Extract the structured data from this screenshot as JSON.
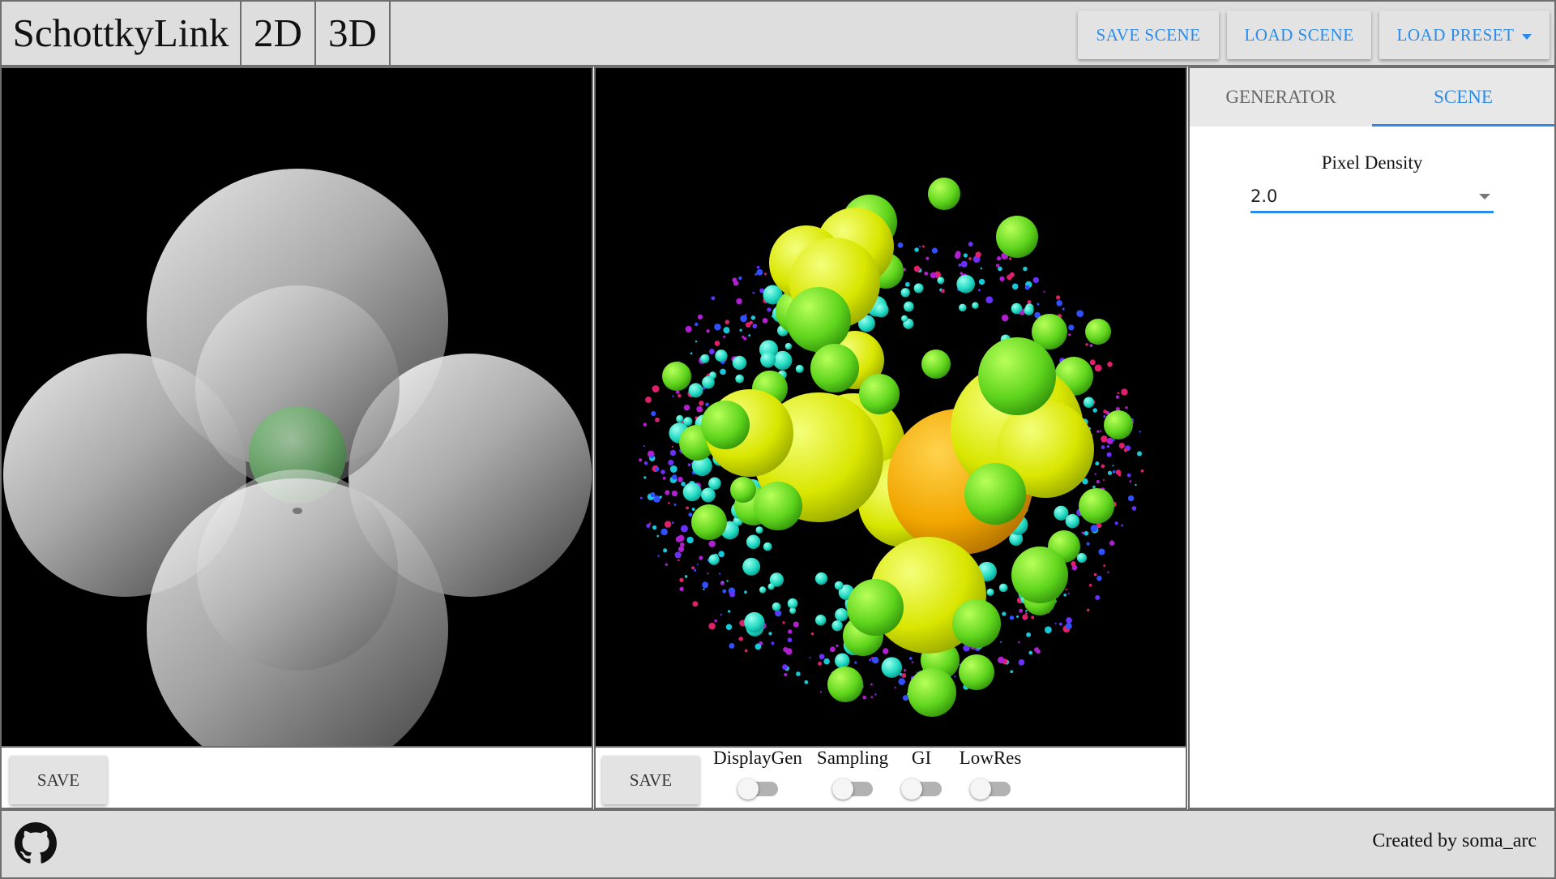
{
  "header": {
    "title": "SchottkyLink",
    "mode_2d": "2D",
    "mode_3d": "3D",
    "save_scene": "SAVE SCENE",
    "load_scene": "LOAD SCENE",
    "load_preset": "LOAD PRESET"
  },
  "panels": {
    "left": {
      "save_label": "SAVE"
    },
    "right": {
      "save_label": "SAVE",
      "toggles": [
        {
          "label": "DisplayGen",
          "on": false
        },
        {
          "label": "Sampling",
          "on": false
        },
        {
          "label": "GI",
          "on": false
        },
        {
          "label": "LowRes",
          "on": false
        }
      ]
    }
  },
  "side": {
    "tabs": [
      "GENERATOR",
      "SCENE"
    ],
    "active_tab": "SCENE",
    "pixel_density_label": "Pixel Density",
    "pixel_density_value": "2.0"
  },
  "footer": {
    "credit": "Created by soma_arc",
    "github_icon": "github-icon"
  },
  "colors": {
    "accent": "#2a8be9",
    "header_bg": "#dedede",
    "canvas_bg": "#000000"
  }
}
